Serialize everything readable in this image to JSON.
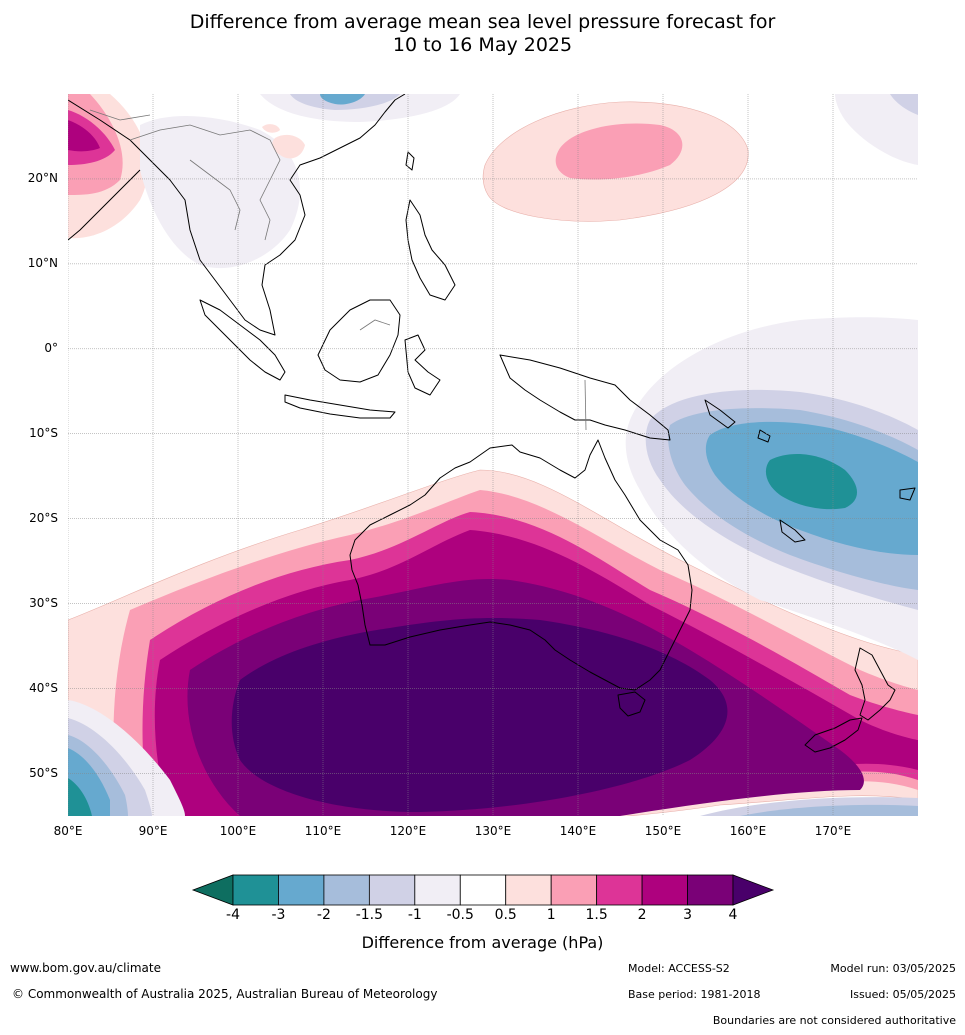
{
  "title": {
    "line1": "Difference from average mean sea level pressure forecast for",
    "line2": "10 to 16 May 2025"
  },
  "map": {
    "lat_labels": [
      "20°N",
      "10°N",
      "0°",
      "10°S",
      "20°S",
      "30°S",
      "40°S",
      "50°S"
    ],
    "lat_values": [
      20,
      10,
      0,
      -10,
      -20,
      -30,
      -40,
      -50
    ],
    "lon_labels": [
      "80°E",
      "90°E",
      "100°E",
      "110°E",
      "120°E",
      "130°E",
      "140°E",
      "150°E",
      "160°E",
      "170°E"
    ],
    "lon_values": [
      80,
      90,
      100,
      110,
      120,
      130,
      140,
      150,
      160,
      170
    ],
    "lon_range": [
      80,
      180
    ],
    "lat_range": [
      -55,
      30
    ],
    "grid": true
  },
  "colorbar": {
    "title": "Difference from average (hPa)",
    "ticks": [
      "-4",
      "-3",
      "-2",
      "-1.5",
      "-1",
      "-0.5",
      "0.5",
      "1",
      "1.5",
      "2",
      "3",
      "4"
    ],
    "colors": [
      "#0e6e60",
      "#1f9196",
      "#66a9cf",
      "#a6bddb",
      "#d0d1e6",
      "#f1eef5",
      "#ffffff",
      "#fde0dd",
      "#fa9fb5",
      "#dd3497",
      "#ae017e",
      "#7a0177",
      "#49006a"
    ]
  },
  "footer": {
    "website": "www.bom.gov.au/climate",
    "copyright": "© Commonwealth of Australia 2025, Australian Bureau of Meteorology",
    "model": "Model: ACCESS-S2",
    "base_period": "Base period: 1981-2018",
    "model_run": "Model run: 03/05/2025",
    "issued": "Issued: 05/05/2025",
    "disclaimer": "Boundaries are not considered authoritative"
  }
}
